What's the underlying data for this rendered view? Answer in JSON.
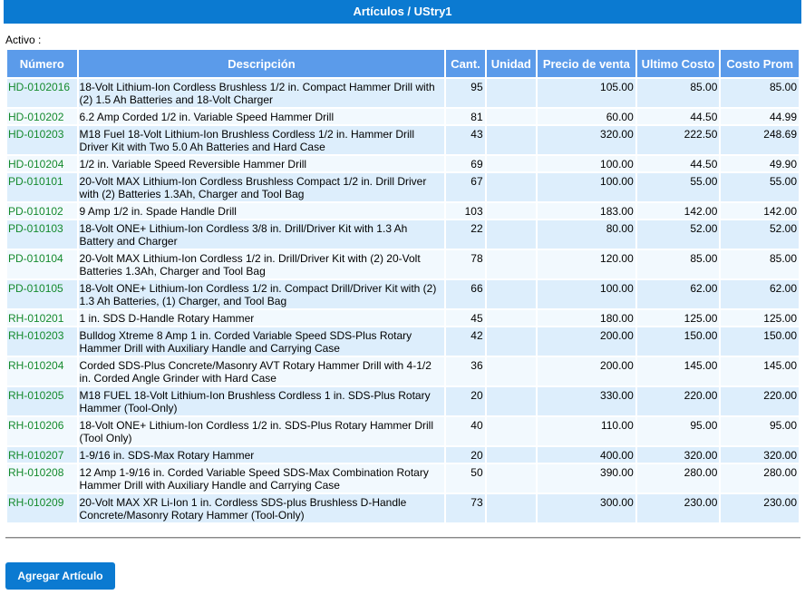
{
  "header": {
    "title": "Artículos / UStry1"
  },
  "filter": {
    "status_label": "Activo :"
  },
  "table": {
    "columns": [
      "Número",
      "Descripción",
      "Cant.",
      "Unidad",
      "Precio de venta",
      "Ultimo Costo",
      "Costo Prom"
    ],
    "rows": [
      {
        "numero": "HD-0102016",
        "descripcion": "18-Volt Lithium-Ion Cordless Brushless 1/2 in. Compact Hammer Drill with (2) 1.5 Ah Batteries and 18-Volt Charger",
        "cant": "95",
        "unidad": "",
        "precio": "105.00",
        "ultimo": "85.00",
        "prom": "85.00"
      },
      {
        "numero": "HD-010202",
        "descripcion": "6.2 Amp Corded 1/2 in. Variable Speed Hammer Drill",
        "cant": "81",
        "unidad": "",
        "precio": "60.00",
        "ultimo": "44.50",
        "prom": "44.99"
      },
      {
        "numero": "HD-010203",
        "descripcion": "M18 Fuel 18-Volt Lithium-Ion Brushless Cordless 1/2 in. Hammer Drill Driver Kit with Two 5.0 Ah Batteries and Hard Case",
        "cant": "43",
        "unidad": "",
        "precio": "320.00",
        "ultimo": "222.50",
        "prom": "248.69"
      },
      {
        "numero": "HD-010204",
        "descripcion": "1/2 in. Variable Speed Reversible Hammer Drill",
        "cant": "69",
        "unidad": "",
        "precio": "100.00",
        "ultimo": "44.50",
        "prom": "49.90"
      },
      {
        "numero": "PD-010101",
        "descripcion": "20-Volt MAX Lithium-Ion Cordless Brushless Compact 1/2 in. Drill Driver with (2) Batteries 1.3Ah, Charger and Tool Bag",
        "cant": "67",
        "unidad": "",
        "precio": "100.00",
        "ultimo": "55.00",
        "prom": "55.00"
      },
      {
        "numero": "PD-010102",
        "descripcion": "9 Amp 1/2 in. Spade Handle Drill",
        "cant": "103",
        "unidad": "",
        "precio": "183.00",
        "ultimo": "142.00",
        "prom": "142.00"
      },
      {
        "numero": "PD-010103",
        "descripcion": "18-Volt ONE+ Lithium-Ion Cordless 3/8 in. Drill/Driver Kit with 1.3 Ah Battery and Charger",
        "cant": "22",
        "unidad": "",
        "precio": "80.00",
        "ultimo": "52.00",
        "prom": "52.00"
      },
      {
        "numero": "PD-010104",
        "descripcion": "20-Volt MAX Lithium-Ion Cordless 1/2 in. Drill/Driver Kit with (2) 20-Volt Batteries 1.3Ah, Charger and Tool Bag",
        "cant": "78",
        "unidad": "",
        "precio": "120.00",
        "ultimo": "85.00",
        "prom": "85.00"
      },
      {
        "numero": "PD-010105",
        "descripcion": "18-Volt ONE+ Lithium-Ion Cordless 1/2 in. Compact Drill/Driver Kit with (2) 1.3 Ah Batteries, (1) Charger, and Tool Bag",
        "cant": "66",
        "unidad": "",
        "precio": "100.00",
        "ultimo": "62.00",
        "prom": "62.00"
      },
      {
        "numero": "RH-010201",
        "descripcion": "1 in. SDS D-Handle Rotary Hammer",
        "cant": "45",
        "unidad": "",
        "precio": "180.00",
        "ultimo": "125.00",
        "prom": "125.00"
      },
      {
        "numero": "RH-010203",
        "descripcion": "Bulldog Xtreme 8 Amp 1 in. Corded Variable Speed SDS-Plus Rotary Hammer Drill with Auxiliary Handle and Carrying Case",
        "cant": "42",
        "unidad": "",
        "precio": "200.00",
        "ultimo": "150.00",
        "prom": "150.00"
      },
      {
        "numero": "RH-010204",
        "descripcion": "Corded SDS-Plus Concrete/Masonry AVT Rotary Hammer Drill with 4-1/2 in. Corded Angle Grinder with Hard Case",
        "cant": "36",
        "unidad": "",
        "precio": "200.00",
        "ultimo": "145.00",
        "prom": "145.00"
      },
      {
        "numero": "RH-010205",
        "descripcion": "M18 FUEL 18-Volt Lithium-Ion Brushless Cordless 1 in. SDS-Plus Rotary Hammer (Tool-Only)",
        "cant": "20",
        "unidad": "",
        "precio": "330.00",
        "ultimo": "220.00",
        "prom": "220.00"
      },
      {
        "numero": "RH-010206",
        "descripcion": "18-Volt ONE+ Lithium-Ion Cordless 1/2 in. SDS-Plus Rotary Hammer Drill (Tool Only)",
        "cant": "40",
        "unidad": "",
        "precio": "110.00",
        "ultimo": "95.00",
        "prom": "95.00"
      },
      {
        "numero": "RH-010207",
        "descripcion": "1-9/16 in. SDS-Max Rotary Hammer",
        "cant": "20",
        "unidad": "",
        "precio": "400.00",
        "ultimo": "320.00",
        "prom": "320.00"
      },
      {
        "numero": "RH-010208",
        "descripcion": "12 Amp 1-9/16 in. Corded Variable Speed SDS-Max Combination Rotary Hammer Drill with Auxiliary Handle and Carrying Case",
        "cant": "50",
        "unidad": "",
        "precio": "390.00",
        "ultimo": "280.00",
        "prom": "280.00"
      },
      {
        "numero": "RH-010209",
        "descripcion": "20-Volt MAX XR Li-Ion 1 in. Cordless SDS-plus Brushless D-Handle Concrete/Masonry Rotary Hammer (Tool-Only)",
        "cant": "73",
        "unidad": "",
        "precio": "300.00",
        "ultimo": "230.00",
        "prom": "230.00"
      }
    ]
  },
  "actions": {
    "add_label": "Agregar Artículo"
  },
  "colors": {
    "header_bg": "#0b7ad1",
    "th_bg": "#5b9bea",
    "row_odd": "#ddeefc",
    "row_even": "#f2f9fe",
    "code_text": "#148a2c"
  }
}
